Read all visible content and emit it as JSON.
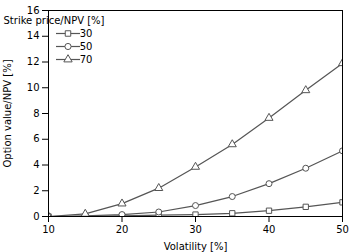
{
  "chart_data": {
    "type": "line",
    "x": [
      10,
      15,
      20,
      25,
      30,
      35,
      40,
      45,
      50
    ],
    "series": [
      {
        "name": "30",
        "color": "#555555",
        "marker": "square",
        "values": [
          0.0,
          0.0,
          0.05,
          0.1,
          0.15,
          0.25,
          0.45,
          0.75,
          1.1
        ]
      },
      {
        "name": "50",
        "color": "#555555",
        "marker": "circle",
        "values": [
          0.0,
          0.05,
          0.15,
          0.35,
          0.85,
          1.55,
          2.55,
          3.75,
          5.1
        ]
      },
      {
        "name": "70",
        "color": "#555555",
        "marker": "triangle",
        "values": [
          0.0,
          0.2,
          1.0,
          2.2,
          3.85,
          5.6,
          7.65,
          9.8,
          11.9
        ]
      }
    ],
    "legend_title": "Strike price/NPV [%]",
    "legend": "upper left",
    "xlabel": "Volatility [%]",
    "ylabel": "Option value/NPV [%]",
    "xlim": [
      10,
      50
    ],
    "ylim": [
      0,
      16
    ],
    "xticks": [
      10,
      20,
      30,
      40,
      50
    ],
    "yticks": [
      0,
      2,
      4,
      6,
      8,
      10,
      12,
      14,
      16
    ],
    "grid": false
  }
}
